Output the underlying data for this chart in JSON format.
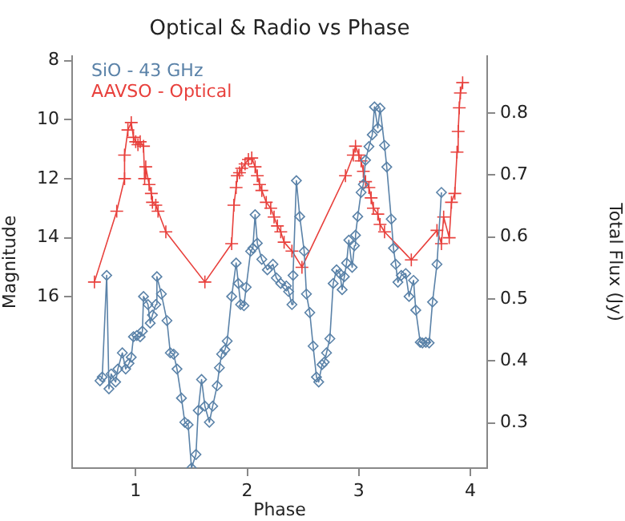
{
  "chart_data": {
    "type": "line",
    "title": "Optical & Radio vs Phase",
    "xlabel": "Phase",
    "ylabel": "Magnitude",
    "y2label": "Total Flux (Jy)",
    "xlim": [
      0.43,
      4.15
    ],
    "xticks": [
      1,
      2,
      3,
      4
    ],
    "ylim": [
      21.8,
      7.85
    ],
    "yticks": [
      8,
      10,
      12,
      14,
      16
    ],
    "y2lim": [
      0.227,
      0.892
    ],
    "y2ticks": [
      0.3,
      0.4,
      0.5,
      0.6,
      0.7,
      0.8
    ],
    "grid": false,
    "legend": "top left",
    "series": [
      {
        "name": "SiO - 43 GHz",
        "color": "#5a82a8",
        "marker": "diamond",
        "axis": "y2",
        "x": [
          0.68,
          0.7,
          0.74,
          0.76,
          0.78,
          0.82,
          0.84,
          0.88,
          0.91,
          0.94,
          0.96,
          0.98,
          1.01,
          1.04,
          1.06,
          1.07,
          1.11,
          1.13,
          1.15,
          1.18,
          1.19,
          1.23,
          1.28,
          1.31,
          1.34,
          1.37,
          1.41,
          1.44,
          1.47,
          1.5,
          1.54,
          1.56,
          1.59,
          1.62,
          1.66,
          1.69,
          1.73,
          1.75,
          1.77,
          1.8,
          1.82,
          1.86,
          1.9,
          1.92,
          1.94,
          1.97,
          1.99,
          2.03,
          2.05,
          2.07,
          2.09,
          2.13,
          2.18,
          2.23,
          2.26,
          2.3,
          2.35,
          2.37,
          2.4,
          2.41,
          2.44,
          2.47,
          2.51,
          2.53,
          2.56,
          2.59,
          2.62,
          2.64,
          2.67,
          2.69,
          2.71,
          2.74,
          2.77,
          2.8,
          2.83,
          2.85,
          2.87,
          2.89,
          2.91,
          2.94,
          2.96,
          2.97,
          2.99,
          3.02,
          3.04,
          3.06,
          3.09,
          3.12,
          3.14,
          3.17,
          3.19,
          3.23,
          3.25,
          3.29,
          3.31,
          3.33,
          3.35,
          3.38,
          3.42,
          3.45,
          3.49,
          3.51,
          3.55,
          3.57,
          3.6,
          3.63,
          3.66,
          3.7,
          3.74
        ],
        "values": [
          0.368,
          0.374,
          0.538,
          0.355,
          0.379,
          0.366,
          0.387,
          0.413,
          0.387,
          0.396,
          0.406,
          0.439,
          0.441,
          0.439,
          0.448,
          0.504,
          0.491,
          0.461,
          0.474,
          0.491,
          0.536,
          0.508,
          0.465,
          0.413,
          0.411,
          0.387,
          0.34,
          0.301,
          0.297,
          0.227,
          0.249,
          0.32,
          0.37,
          0.327,
          0.301,
          0.327,
          0.36,
          0.389,
          0.411,
          0.418,
          0.432,
          0.504,
          0.558,
          0.525,
          0.491,
          0.489,
          0.519,
          0.577,
          0.582,
          0.636,
          0.59,
          0.564,
          0.547,
          0.556,
          0.534,
          0.525,
          0.521,
          0.512,
          0.491,
          0.538,
          0.691,
          0.633,
          0.577,
          0.508,
          0.478,
          0.424,
          0.374,
          0.366,
          0.394,
          0.398,
          0.413,
          0.436,
          0.525,
          0.547,
          0.541,
          0.515,
          0.536,
          0.558,
          0.595,
          0.551,
          0.586,
          0.603,
          0.633,
          0.672,
          0.685,
          0.724,
          0.746,
          0.765,
          0.81,
          0.776,
          0.808,
          0.748,
          0.713,
          0.629,
          0.582,
          0.556,
          0.527,
          0.538,
          0.541,
          0.504,
          0.53,
          0.482,
          0.43,
          0.429,
          0.43,
          0.429,
          0.495,
          0.556,
          0.672
        ]
      },
      {
        "name": "AAVSO - Optical",
        "color": "#e8403c",
        "marker": "cross",
        "x": [
          0.63,
          0.83,
          0.9,
          0.9,
          0.93,
          0.96,
          0.98,
          1.0,
          1.02,
          1.04,
          1.07,
          1.08,
          1.09,
          1.12,
          1.14,
          1.15,
          1.18,
          1.2,
          1.27,
          1.62,
          1.86,
          1.88,
          1.9,
          1.91,
          1.93,
          1.95,
          1.98,
          2.01,
          2.04,
          2.07,
          2.09,
          2.11,
          2.13,
          2.17,
          2.21,
          2.24,
          2.27,
          2.3,
          2.33,
          2.4,
          2.49,
          2.88,
          2.95,
          2.97,
          3.0,
          3.02,
          3.04,
          3.06,
          3.09,
          3.11,
          3.13,
          3.17,
          3.19,
          3.23,
          3.47,
          3.7,
          3.74,
          3.76,
          3.81,
          3.83,
          3.86,
          3.88,
          3.89,
          3.9,
          3.91,
          3.93
        ],
        "values": [
          15.5,
          13.1,
          12.0,
          11.2,
          10.35,
          10.1,
          10.6,
          10.75,
          10.85,
          10.75,
          10.9,
          12.0,
          11.6,
          12.2,
          12.5,
          12.8,
          12.9,
          13.1,
          13.8,
          15.5,
          14.2,
          12.9,
          12.3,
          11.9,
          11.8,
          11.65,
          11.5,
          11.35,
          11.3,
          11.6,
          11.9,
          12.2,
          12.4,
          12.8,
          13.0,
          13.3,
          13.6,
          13.8,
          14.15,
          14.45,
          15.0,
          11.9,
          11.2,
          10.9,
          11.2,
          11.4,
          11.75,
          12.1,
          12.3,
          12.65,
          13.0,
          13.2,
          13.55,
          13.8,
          14.75,
          13.75,
          14.2,
          13.3,
          14.0,
          12.8,
          12.5,
          11.1,
          10.4,
          9.6,
          9.1,
          8.75
        ]
      }
    ]
  }
}
